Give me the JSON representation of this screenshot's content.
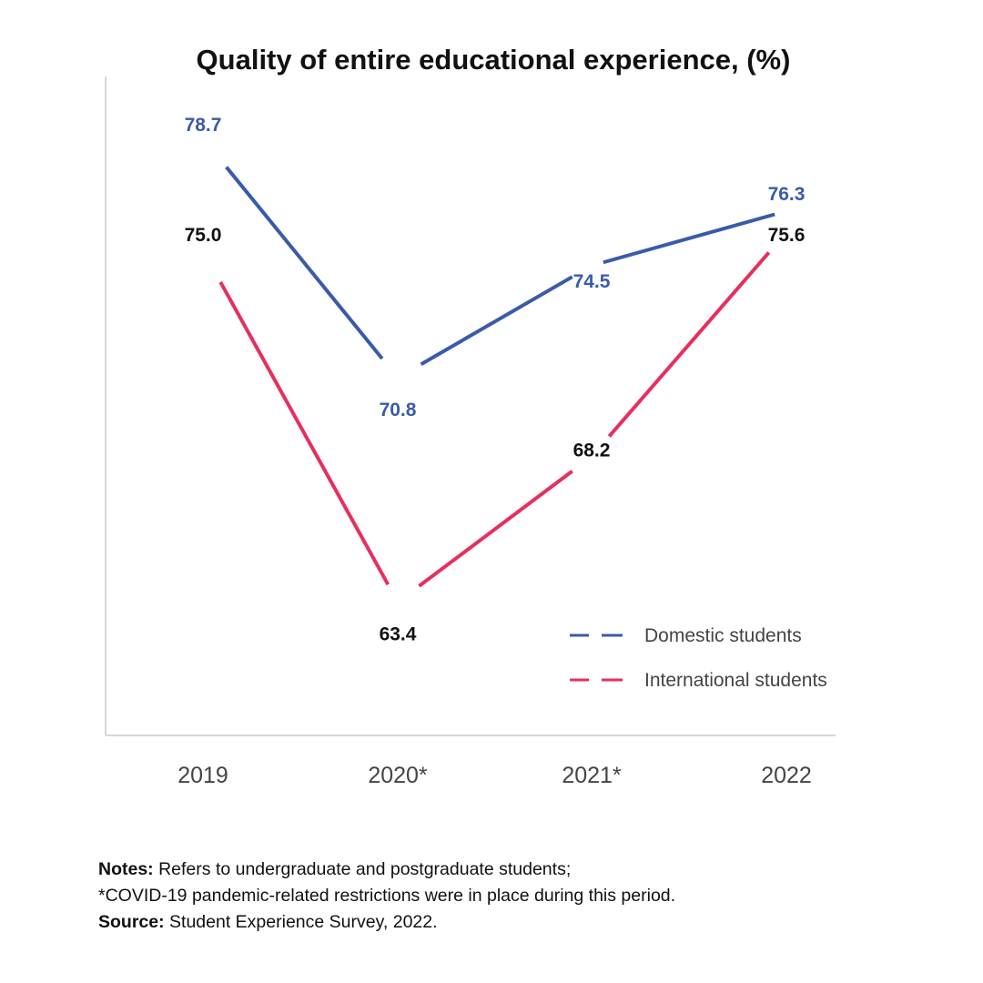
{
  "chart_data": {
    "type": "line",
    "title": "Quality of entire educational experience, (%)",
    "xlabel": "",
    "ylabel": "",
    "categories": [
      "2019",
      "2020*",
      "2021*",
      "2022"
    ],
    "ylim": [
      59,
      82
    ],
    "grid": false,
    "legend_position": "bottom-right",
    "series": [
      {
        "name": "Domestic students",
        "values": [
          78.7,
          70.8,
          74.5,
          76.3
        ],
        "labels": [
          "78.7",
          "70.8",
          "74.5",
          "76.3"
        ],
        "color": "#3a5ba9",
        "label_color": "#3a5ba9"
      },
      {
        "name": "International students",
        "values": [
          75.0,
          63.4,
          68.2,
          75.6
        ],
        "labels": [
          "75.0",
          "63.4",
          "68.2",
          "75.6"
        ],
        "color": "#e5305f",
        "label_color": "#111111"
      }
    ]
  },
  "notes": {
    "notes_label": "Notes:",
    "notes_text": " Refers to undergraduate and postgraduate students;",
    "covid_text": "*COVID-19 pandemic-related restrictions were in place during this period.",
    "source_label": "Source:",
    "source_text": " Student Experience Survey, 2022."
  }
}
